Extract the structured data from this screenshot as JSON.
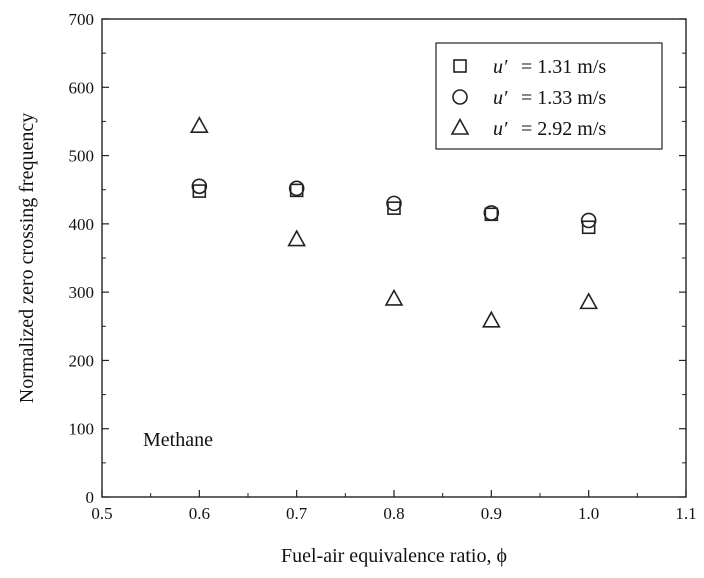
{
  "chart_data": {
    "type": "scatter",
    "xlabel": "Fuel-air equivalence ratio, ϕ",
    "ylabel": "Normalized zero crossing frequency",
    "xlim": [
      0.5,
      1.1
    ],
    "ylim": [
      0,
      700
    ],
    "x_ticks": [
      0.5,
      0.6,
      0.7,
      0.8,
      0.9,
      1.0,
      1.1
    ],
    "x_tick_labels": [
      "0.5",
      "0.6",
      "0.7",
      "0.8",
      "0.9",
      "1.0",
      "1.1"
    ],
    "y_ticks": [
      0,
      100,
      200,
      300,
      400,
      500,
      600,
      700
    ],
    "y_tick_labels": [
      "0",
      "100",
      "200",
      "300",
      "400",
      "500",
      "600",
      "700"
    ],
    "grid": false,
    "legend_position": "top-right",
    "annotation": "Methane",
    "series": [
      {
        "name": "u′ = 1.31 m/s",
        "legend_symbol": "u′",
        "legend_value": "= 1.31 m/s",
        "marker": "square",
        "x": [
          0.6,
          0.7,
          0.8,
          0.9,
          1.0
        ],
        "y": [
          448,
          449,
          423,
          414,
          395
        ]
      },
      {
        "name": "u′ = 1.33 m/s",
        "legend_symbol": "u′",
        "legend_value": "= 1.33 m/s",
        "marker": "circle",
        "x": [
          0.6,
          0.7,
          0.8,
          0.9,
          1.0
        ],
        "y": [
          455,
          452,
          430,
          416,
          405
        ]
      },
      {
        "name": "u′ = 2.92 m/s",
        "legend_symbol": "u′",
        "legend_value": "= 2.92 m/s",
        "marker": "triangle",
        "x": [
          0.6,
          0.7,
          0.8,
          0.9,
          1.0
        ],
        "y": [
          543,
          377,
          290,
          258,
          285
        ]
      }
    ]
  }
}
